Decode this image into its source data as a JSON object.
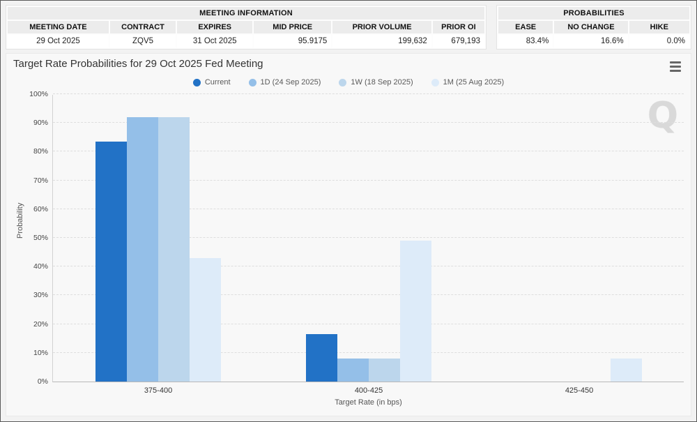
{
  "meeting_info": {
    "title": "MEETING INFORMATION",
    "columns": [
      "MEETING DATE",
      "CONTRACT",
      "EXPIRES",
      "MID PRICE",
      "PRIOR VOLUME",
      "PRIOR OI"
    ],
    "values": [
      "29 Oct 2025",
      "ZQV5",
      "31 Oct 2025",
      "95.9175",
      "199,632",
      "679,193"
    ]
  },
  "probabilities": {
    "title": "PROBABILITIES",
    "columns": [
      "EASE",
      "NO CHANGE",
      "HIKE"
    ],
    "values": [
      "83.4%",
      "16.6%",
      "0.0%"
    ]
  },
  "chart": {
    "title": "Target Rate Probabilities for 29 Oct 2025 Fed Meeting",
    "watermark": "Q",
    "menu_icon": "hamburger-menu-icon"
  },
  "chart_data": {
    "type": "bar",
    "title": "Target Rate Probabilities for 29 Oct 2025 Fed Meeting",
    "categories": [
      "375-400",
      "400-425",
      "425-450"
    ],
    "series": [
      {
        "name": "Current",
        "color": "#2272c6",
        "values": [
          83.4,
          16.6,
          0
        ]
      },
      {
        "name": "1D (24 Sep 2025)",
        "color": "#94bfe8",
        "values": [
          92,
          8,
          0
        ]
      },
      {
        "name": "1W (18 Sep 2025)",
        "color": "#bcd6ec",
        "values": [
          92,
          8,
          0
        ]
      },
      {
        "name": "1M (25 Aug 2025)",
        "color": "#ddebf9",
        "values": [
          43,
          49,
          8
        ]
      }
    ],
    "xlabel": "Target Rate (in bps)",
    "ylabel": "Probability",
    "ylim": [
      0,
      100
    ],
    "ytick_step": 10,
    "ytick_suffix": "%",
    "legend_position": "top",
    "grid": "horizontal-dashed"
  }
}
